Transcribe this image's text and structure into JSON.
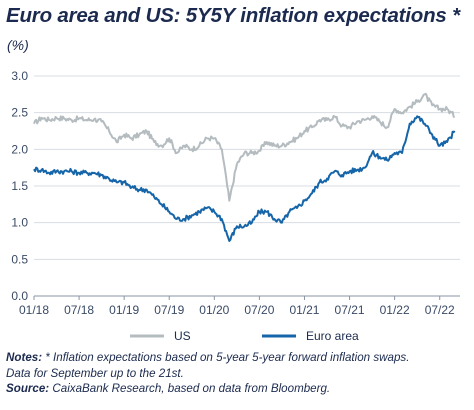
{
  "title": "Euro area and US: 5Y5Y inflation expectations *",
  "subtitle": "(%)",
  "notes": {
    "notes_label": "Notes:",
    "notes_text": " * Inflation expectations based on 5-year 5-year forward inflation swaps.",
    "notes_text2": "Data for September up to the 21st.",
    "source_label": "Source:",
    "source_text": " CaixaBank Research, based on data from Bloomberg."
  },
  "chart_data": {
    "type": "line",
    "title": "Euro area and US: 5Y5Y inflation expectations *",
    "ylabel": "(%)",
    "ylim": [
      0,
      3
    ],
    "yticks": [
      "0.0",
      "0.5",
      "1.0",
      "1.5",
      "2.0",
      "2.5",
      "3.0"
    ],
    "xlim": [
      "2018-01",
      "2022-09"
    ],
    "xticks": [
      "01/18",
      "07/18",
      "01/19",
      "07/19",
      "01/20",
      "07/20",
      "01/21",
      "07/21",
      "01/22",
      "07/22"
    ],
    "grid": true,
    "legend_position": "bottom",
    "series": [
      {
        "name": "US",
        "color": "#b4bcc0",
        "x": [
          "2018-01",
          "2018-02",
          "2018-03",
          "2018-04",
          "2018-05",
          "2018-06",
          "2018-07",
          "2018-08",
          "2018-09",
          "2018-10",
          "2018-11",
          "2018-12",
          "2019-01",
          "2019-02",
          "2019-03",
          "2019-04",
          "2019-05",
          "2019-06",
          "2019-07",
          "2019-08",
          "2019-09",
          "2019-10",
          "2019-11",
          "2019-12",
          "2020-01",
          "2020-02",
          "2020-03",
          "2020-04",
          "2020-05",
          "2020-06",
          "2020-07",
          "2020-08",
          "2020-09",
          "2020-10",
          "2020-11",
          "2020-12",
          "2021-01",
          "2021-02",
          "2021-03",
          "2021-04",
          "2021-05",
          "2021-06",
          "2021-07",
          "2021-08",
          "2021-09",
          "2021-10",
          "2021-11",
          "2021-12",
          "2022-01",
          "2022-02",
          "2022-03",
          "2022-04",
          "2022-05",
          "2022-06",
          "2022-07",
          "2022-08",
          "2022-09"
        ],
        "values": [
          2.35,
          2.43,
          2.4,
          2.43,
          2.42,
          2.4,
          2.42,
          2.4,
          2.41,
          2.38,
          2.25,
          2.1,
          2.2,
          2.15,
          2.2,
          2.25,
          2.1,
          2.05,
          2.15,
          1.95,
          2.05,
          2.0,
          2.05,
          2.15,
          2.15,
          2.0,
          1.3,
          1.8,
          1.95,
          1.95,
          1.98,
          2.1,
          2.05,
          2.05,
          2.1,
          2.15,
          2.25,
          2.3,
          2.4,
          2.4,
          2.45,
          2.32,
          2.3,
          2.38,
          2.4,
          2.45,
          2.38,
          2.3,
          2.55,
          2.5,
          2.58,
          2.65,
          2.75,
          2.6,
          2.55,
          2.55,
          2.45
        ]
      },
      {
        "name": "Euro area",
        "color": "#1565a8",
        "x": [
          "2018-01",
          "2018-02",
          "2018-03",
          "2018-04",
          "2018-05",
          "2018-06",
          "2018-07",
          "2018-08",
          "2018-09",
          "2018-10",
          "2018-11",
          "2018-12",
          "2019-01",
          "2019-02",
          "2019-03",
          "2019-04",
          "2019-05",
          "2019-06",
          "2019-07",
          "2019-08",
          "2019-09",
          "2019-10",
          "2019-11",
          "2019-12",
          "2020-01",
          "2020-02",
          "2020-03",
          "2020-04",
          "2020-05",
          "2020-06",
          "2020-07",
          "2020-08",
          "2020-09",
          "2020-10",
          "2020-11",
          "2020-12",
          "2021-01",
          "2021-02",
          "2021-03",
          "2021-04",
          "2021-05",
          "2021-06",
          "2021-07",
          "2021-08",
          "2021-09",
          "2021-10",
          "2021-11",
          "2021-12",
          "2022-01",
          "2022-02",
          "2022-03",
          "2022-04",
          "2022-05",
          "2022-06",
          "2022-07",
          "2022-08",
          "2022-09"
        ],
        "values": [
          1.73,
          1.72,
          1.68,
          1.7,
          1.7,
          1.7,
          1.68,
          1.68,
          1.68,
          1.65,
          1.6,
          1.55,
          1.55,
          1.48,
          1.45,
          1.45,
          1.35,
          1.25,
          1.15,
          1.05,
          1.05,
          1.1,
          1.15,
          1.2,
          1.15,
          1.05,
          0.75,
          0.95,
          0.95,
          1.0,
          1.15,
          1.15,
          1.05,
          1.0,
          1.15,
          1.2,
          1.3,
          1.4,
          1.55,
          1.6,
          1.7,
          1.65,
          1.7,
          1.72,
          1.75,
          1.95,
          1.9,
          1.85,
          1.95,
          1.95,
          2.35,
          2.45,
          2.35,
          2.2,
          2.05,
          2.1,
          2.25
        ]
      }
    ]
  }
}
